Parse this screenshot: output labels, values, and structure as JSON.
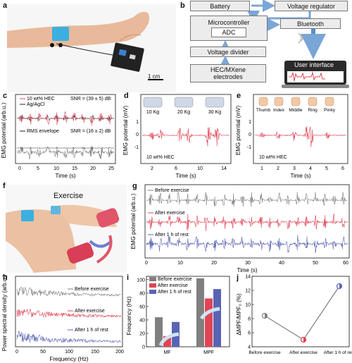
{
  "panels": {
    "a": {
      "label": "a",
      "scale_bar": "1 cm"
    },
    "b": {
      "label": "b",
      "battery": "Battery",
      "regulator": "Voltage regulator",
      "mcu": "Microcontroller",
      "adc": "ADC",
      "bluetooth": "Bluetooth",
      "divider": "Voltage divider",
      "electrodes_line1": "HEC/MXene",
      "electrodes_line2": "electrodes",
      "ui": "User interface"
    },
    "c": {
      "label": "c",
      "legend1": "10 wt% HEC",
      "legend2": "Ag/AgCl",
      "snr1": "SNR = (39 ± 5) dB",
      "legend3": "RMS envelope",
      "snr2": "SNR = (16 ± 2) dB",
      "ylabel": "EMG potential (arb.u.)",
      "xlabel": "Time (s)",
      "xticks": [
        "0",
        "5",
        "10",
        "15",
        "20",
        "25"
      ]
    },
    "d": {
      "label": "d",
      "weights": [
        "10 Kg",
        "20 Kg",
        "30 Kg"
      ],
      "legend": "10 wt% HEC",
      "ylabel": "EMG potential (mV)",
      "xlabel": "Time (s)",
      "xticks": [
        "2",
        "6",
        "10",
        "14"
      ],
      "yticks": [
        "1",
        "0",
        "-1"
      ]
    },
    "e": {
      "label": "e",
      "fingers": [
        "Thumb",
        "Index",
        "Middle",
        "Ring",
        "Pinky"
      ],
      "legend": "10 wt% HEC",
      "ylabel": "EMG potential (mV)",
      "xlabel": "Time (s)",
      "xticks": [
        "1",
        "2",
        "3",
        "4",
        "5",
        "6"
      ],
      "yticks": [
        "1",
        "0",
        "-1"
      ]
    },
    "f": {
      "label": "f",
      "title": "Exercise"
    },
    "g": {
      "label": "g",
      "series": [
        "Before exercise",
        "After exercise",
        "After 1 h of rest"
      ],
      "ylabel": "EMG potential (arb.u.)",
      "xlabel": "Time (s)",
      "xticks": [
        "0",
        "10",
        "20",
        "30",
        "40",
        "50",
        "60"
      ]
    },
    "h": {
      "label": "h",
      "series": [
        "Before exercise",
        "After exercise",
        "After 1 h of rest"
      ],
      "ylabel": "Power spectral density (arb.u.)",
      "xlabel": "Frequency (Hz)",
      "xticks": [
        "0",
        "50",
        "100",
        "150",
        "200"
      ]
    },
    "i": {
      "label": "i",
      "ylabel": "Frequency (Hz)",
      "yticks": [
        "0",
        "20",
        "40",
        "60",
        "80",
        "100"
      ]
    },
    "j": {
      "label": "j",
      "ylabel": "ΔMPF/MPF₀ (%)",
      "yticks": [
        "4",
        "6",
        "8",
        "10",
        "12",
        "14"
      ]
    }
  },
  "colors": {
    "gray": "#7f7f7f",
    "red": "#e04455",
    "blue": "#5a64b4",
    "black": "#222222"
  },
  "chart_data": [
    {
      "type": "bar",
      "panel": "i",
      "categories": [
        "MF",
        "MPF"
      ],
      "ylim": [
        0,
        100
      ],
      "series": [
        {
          "name": "Before exercise",
          "values": [
            44,
            102
          ]
        },
        {
          "name": "After exercise",
          "values": [
            16,
            72
          ]
        },
        {
          "name": "After 1 h of rest",
          "values": [
            37,
            86
          ]
        }
      ]
    },
    {
      "type": "line",
      "panel": "j",
      "categories": [
        "Before exercise",
        "After exercise",
        "After 1 h of rest"
      ],
      "values": [
        8.4,
        5.0,
        12.6
      ],
      "ylim": [
        4,
        14
      ]
    }
  ]
}
